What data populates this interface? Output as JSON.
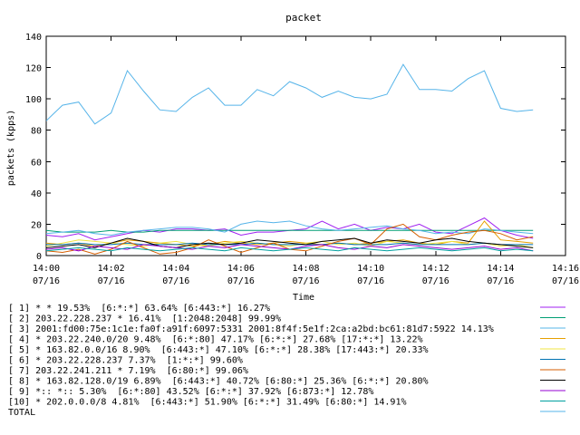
{
  "chart_data": {
    "type": "line",
    "title": "packet",
    "xlabel": "Time",
    "ylabel": "packets (kpps)",
    "ylim": [
      0,
      140
    ],
    "xlim": [
      "14:00",
      "14:16"
    ],
    "y_ticks": [
      "0",
      "20",
      "40",
      "60",
      "80",
      "100",
      "120",
      "140"
    ],
    "x_ticks": [
      {
        "time": "14:00",
        "date": "07/16"
      },
      {
        "time": "14:02",
        "date": "07/16"
      },
      {
        "time": "14:04",
        "date": "07/16"
      },
      {
        "time": "14:06",
        "date": "07/16"
      },
      {
        "time": "14:08",
        "date": "07/16"
      },
      {
        "time": "14:10",
        "date": "07/16"
      },
      {
        "time": "14:12",
        "date": "07/16"
      },
      {
        "time": "14:14",
        "date": "07/16"
      },
      {
        "time": "14:16",
        "date": "07/16"
      }
    ],
    "grid": false,
    "legend_placement": "bottom",
    "x": [
      "14:00:00",
      "14:00:30",
      "14:01:00",
      "14:01:30",
      "14:02:00",
      "14:02:30",
      "14:03:00",
      "14:03:30",
      "14:04:00",
      "14:04:30",
      "14:05:00",
      "14:05:30",
      "14:06:00",
      "14:06:30",
      "14:07:00",
      "14:07:30",
      "14:08:00",
      "14:08:30",
      "14:09:00",
      "14:09:30",
      "14:10:00",
      "14:10:30",
      "14:11:00",
      "14:11:30",
      "14:12:00",
      "14:12:30",
      "14:13:00",
      "14:13:30",
      "14:14:00",
      "14:14:30",
      "14:15:00"
    ],
    "series": [
      {
        "name": "[ 1] * * 19.53%  [6:*:*] 63.64% [6:443:*] 16.27%",
        "color": "#a020f0",
        "values": [
          13,
          12,
          14,
          10,
          12,
          14,
          16,
          15,
          17,
          17,
          16,
          17,
          13,
          15,
          15,
          16,
          17,
          22,
          17,
          20,
          16,
          18,
          17,
          20,
          15,
          14,
          19,
          24,
          16,
          13,
          11
        ]
      },
      {
        "name": "[ 2] 203.22.228.237 * 16.41%  [1:2048:2048] 99.99%",
        "color": "#009e73",
        "values": [
          16,
          15,
          15,
          15,
          16,
          15,
          15,
          16,
          16,
          16,
          16,
          16,
          16,
          16,
          16,
          16,
          16,
          16,
          16,
          16,
          16,
          16,
          16,
          16,
          16,
          16,
          16,
          16,
          16,
          16,
          16
        ]
      },
      {
        "name": "[ 3] 2001:fd00:75e:1c1e:fa0f:a91f:6097:5331 2001:8f4f:5e1f:2ca:a2bd:bc61:81d7:5922 14.13%",
        "color": "#56b4e9",
        "values": [
          14,
          15,
          16,
          14,
          13,
          15,
          16,
          17,
          18,
          18,
          17,
          15,
          20,
          22,
          21,
          22,
          19,
          17,
          16,
          17,
          18,
          19,
          17,
          16,
          14,
          15,
          14,
          17,
          16,
          15,
          14
        ]
      },
      {
        "name": "[ 4] * 203.22.240.0/20 9.48%  [6:*:80] 47.17% [6:*:*] 27.68% [17:*:*] 13.22%",
        "color": "#e69f00",
        "values": [
          8,
          7,
          8,
          6,
          8,
          10,
          9,
          8,
          7,
          6,
          7,
          9,
          8,
          7,
          8,
          9,
          8,
          7,
          8,
          7,
          8,
          9,
          10,
          8,
          7,
          9,
          8,
          22,
          10,
          9,
          8
        ]
      },
      {
        "name": "[ 5] * 163.82.0.0/16 8.90%  [6:443:*] 47.10% [6:*:*] 28.38% [17:443:*] 20.33%",
        "color": "#f0e442",
        "values": [
          6,
          8,
          10,
          9,
          8,
          7,
          6,
          8,
          9,
          7,
          6,
          8,
          9,
          8,
          7,
          6,
          8,
          9,
          7,
          8,
          6,
          9,
          8,
          7,
          8,
          9,
          7,
          8,
          6,
          7,
          5
        ]
      },
      {
        "name": "[ 6] * 203.22.228.237 7.37%  [1:*:*] 99.60%",
        "color": "#0072b2",
        "values": [
          7,
          7,
          8,
          7,
          7,
          8,
          7,
          7,
          7,
          8,
          7,
          7,
          7,
          8,
          7,
          7,
          7,
          7,
          8,
          7,
          7,
          7,
          8,
          7,
          7,
          7,
          7,
          8,
          7,
          7,
          7
        ]
      },
      {
        "name": "[ 7] 203.22.241.211 * 7.19%  [6:80:*] 99.06%",
        "color": "#d55e00",
        "values": [
          3,
          2,
          4,
          1,
          4,
          9,
          5,
          1,
          2,
          5,
          10,
          6,
          2,
          5,
          8,
          4,
          3,
          6,
          9,
          11,
          7,
          17,
          20,
          12,
          10,
          13,
          15,
          16,
          14,
          10,
          12
        ]
      },
      {
        "name": "[ 8] * 163.82.128.0/19 6.89%  [6:443:*] 40.72% [6:80:*] 25.36% [6:*:*] 20.80%",
        "color": "#000000",
        "values": [
          5,
          6,
          7,
          5,
          8,
          11,
          9,
          6,
          5,
          7,
          8,
          7,
          8,
          10,
          9,
          8,
          7,
          9,
          10,
          11,
          8,
          10,
          9,
          8,
          10,
          11,
          9,
          8,
          7,
          6,
          5
        ]
      },
      {
        "name": "[ 9] *:: *:: 5.30%  [6:*:80] 43.52% [6:*:*] 37.92% [6:873:*] 12.78%",
        "color": "#9400d3",
        "values": [
          4,
          5,
          3,
          6,
          5,
          4,
          7,
          6,
          5,
          4,
          6,
          5,
          7,
          6,
          5,
          4,
          6,
          7,
          5,
          4,
          6,
          5,
          7,
          6,
          5,
          4,
          5,
          6,
          4,
          5,
          3
        ]
      },
      {
        "name": "[10] * 202.0.0.0/8 4.81%  [6:443:*] 51.90% [6:*:*] 31.49% [6:80:*] 14.91%",
        "color": "#00a0a0",
        "values": [
          3,
          4,
          5,
          4,
          3,
          5,
          4,
          3,
          4,
          5,
          4,
          3,
          5,
          4,
          3,
          4,
          5,
          4,
          3,
          5,
          4,
          3,
          4,
          5,
          4,
          3,
          4,
          5,
          3,
          4,
          3
        ]
      },
      {
        "name": "TOTAL",
        "color": "#56b4e9",
        "values": [
          86,
          96,
          98,
          84,
          91,
          118,
          105,
          93,
          92,
          101,
          107,
          96,
          96,
          106,
          102,
          111,
          107,
          101,
          105,
          101,
          100,
          103,
          122,
          106,
          106,
          105,
          113,
          118,
          94,
          92,
          93
        ]
      }
    ]
  }
}
